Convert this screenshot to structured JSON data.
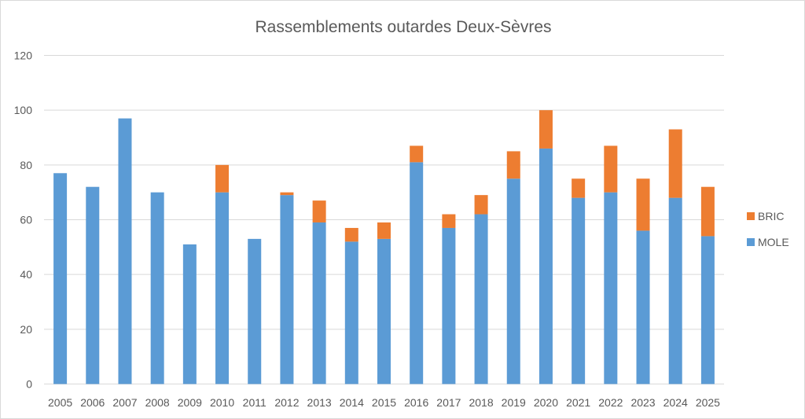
{
  "chart_data": {
    "type": "bar",
    "stacked": true,
    "title": "Rassemblements outardes Deux-Sèvres",
    "xlabel": "",
    "ylabel": "",
    "ylim": [
      0,
      120
    ],
    "yticks": [
      0,
      20,
      40,
      60,
      80,
      100,
      120
    ],
    "grid": true,
    "legend_position": "right",
    "categories": [
      "2005",
      "2006",
      "2007",
      "2008",
      "2009",
      "2010",
      "2011",
      "2012",
      "2013",
      "2014",
      "2015",
      "2016",
      "2017",
      "2018",
      "2019",
      "2020",
      "2021",
      "2022",
      "2023",
      "2024",
      "2025"
    ],
    "series": [
      {
        "name": "MOLE",
        "color": "#5b9bd5",
        "values": [
          77,
          72,
          97,
          70,
          51,
          70,
          53,
          69,
          59,
          52,
          53,
          81,
          57,
          62,
          75,
          86,
          68,
          70,
          56,
          68,
          54
        ]
      },
      {
        "name": "BRIC",
        "color": "#ed7d31",
        "values": [
          0,
          0,
          0,
          0,
          0,
          10,
          0,
          1,
          8,
          5,
          6,
          6,
          5,
          7,
          10,
          14,
          7,
          17,
          19,
          25,
          18
        ]
      }
    ]
  }
}
